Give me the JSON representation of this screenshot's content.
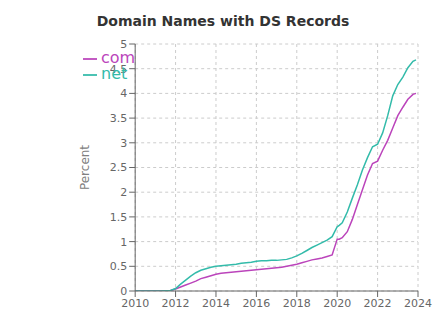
{
  "chart_data": {
    "type": "line",
    "title": "Domain Names with DS Records",
    "y_label": "Percent",
    "x": [
      2010.0,
      2010.25,
      2010.5,
      2010.75,
      2011.0,
      2011.25,
      2011.5,
      2011.75,
      2012.0,
      2012.25,
      2012.5,
      2012.75,
      2013.0,
      2013.25,
      2013.5,
      2013.75,
      2014.0,
      2014.25,
      2014.5,
      2014.75,
      2015.0,
      2015.25,
      2015.5,
      2015.75,
      2016.0,
      2016.25,
      2016.5,
      2016.75,
      2017.0,
      2017.25,
      2017.5,
      2017.75,
      2018.0,
      2018.25,
      2018.5,
      2018.75,
      2019.0,
      2019.25,
      2019.5,
      2019.75,
      2020.0,
      2020.1,
      2020.25,
      2020.5,
      2020.75,
      2021.0,
      2021.25,
      2021.5,
      2021.75,
      2022.0,
      2022.25,
      2022.5,
      2022.75,
      2023.0,
      2023.25,
      2023.5,
      2023.75,
      2023.9
    ],
    "series": [
      {
        "name": "com",
        "color": "#bb44bb",
        "values": [
          0.0,
          0.0,
          0.0,
          0.0,
          0.0,
          0.0,
          0.005,
          0.01,
          0.04,
          0.08,
          0.12,
          0.16,
          0.2,
          0.25,
          0.28,
          0.31,
          0.34,
          0.36,
          0.37,
          0.38,
          0.39,
          0.4,
          0.41,
          0.42,
          0.43,
          0.44,
          0.45,
          0.46,
          0.47,
          0.48,
          0.5,
          0.52,
          0.54,
          0.57,
          0.6,
          0.63,
          0.65,
          0.67,
          0.7,
          0.73,
          1.05,
          1.05,
          1.08,
          1.2,
          1.45,
          1.75,
          2.05,
          2.35,
          2.58,
          2.63,
          2.85,
          3.05,
          3.3,
          3.55,
          3.72,
          3.88,
          3.98,
          4.0
        ]
      },
      {
        "name": "net",
        "color": "#33bbaa",
        "values": [
          0.0,
          0.0,
          0.0,
          0.0,
          0.0,
          0.0,
          0.005,
          0.01,
          0.05,
          0.14,
          0.22,
          0.3,
          0.37,
          0.42,
          0.45,
          0.48,
          0.5,
          0.51,
          0.52,
          0.53,
          0.54,
          0.56,
          0.57,
          0.58,
          0.6,
          0.61,
          0.61,
          0.62,
          0.62,
          0.63,
          0.64,
          0.67,
          0.71,
          0.76,
          0.82,
          0.88,
          0.93,
          0.98,
          1.03,
          1.1,
          1.3,
          1.33,
          1.38,
          1.6,
          1.88,
          2.15,
          2.45,
          2.7,
          2.92,
          2.97,
          3.2,
          3.55,
          3.95,
          4.18,
          4.33,
          4.52,
          4.65,
          4.68
        ]
      }
    ],
    "xlim": [
      2010,
      2024
    ],
    "xticks": [
      2010,
      2012,
      2014,
      2016,
      2018,
      2020,
      2022,
      2024
    ],
    "ylim": [
      0,
      5
    ],
    "yticks": [
      0,
      0.5,
      1,
      1.5,
      2,
      2.5,
      3,
      3.5,
      4,
      4.5,
      5
    ],
    "grid": true,
    "legend": "upper left"
  }
}
